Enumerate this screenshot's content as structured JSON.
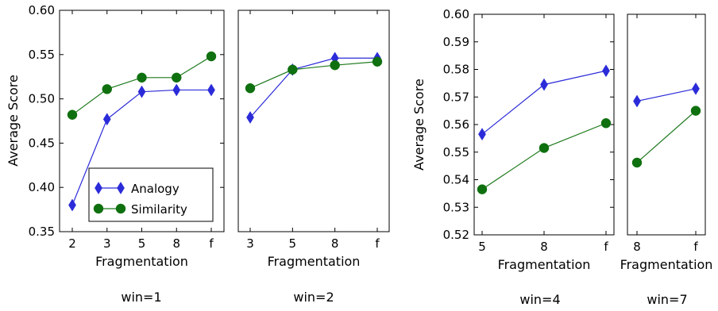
{
  "colors": {
    "analogy": "#2b2bd9",
    "similarity": "#1f7a1f",
    "similarity_marker": "#0f700f"
  },
  "chart_data": [
    {
      "type": "line",
      "caption": "win=1",
      "xlabel": "Fragmentation",
      "ylabel": "Average Score",
      "categories": [
        "2",
        "3",
        "5",
        "8",
        "f"
      ],
      "ylim": [
        0.35,
        0.6
      ],
      "yticks": [
        "0.35",
        "0.40",
        "0.45",
        "0.50",
        "0.55",
        "0.60"
      ],
      "grid": false,
      "legend": "lower-right",
      "series": [
        {
          "name": "Analogy",
          "marker": "diamond",
          "values": [
            0.38,
            0.477,
            0.508,
            0.51,
            0.51
          ]
        },
        {
          "name": "Similarity",
          "marker": "circle",
          "values": [
            0.482,
            0.511,
            0.524,
            0.524,
            0.548
          ]
        }
      ]
    },
    {
      "type": "line",
      "caption": "win=2",
      "xlabel": "Fragmentation",
      "ylabel": "",
      "categories": [
        "3",
        "5",
        "8",
        "f"
      ],
      "ylim": [
        0.35,
        0.6
      ],
      "grid": false,
      "series": [
        {
          "name": "Analogy",
          "marker": "diamond",
          "values": [
            0.479,
            0.533,
            0.546,
            0.546
          ]
        },
        {
          "name": "Similarity",
          "marker": "circle",
          "values": [
            0.512,
            0.533,
            0.538,
            0.542
          ]
        }
      ]
    },
    {
      "type": "line",
      "caption": "win=4",
      "xlabel": "Fragmentation",
      "ylabel": "Average Score",
      "categories": [
        "5",
        "8",
        "f"
      ],
      "ylim": [
        0.52,
        0.6
      ],
      "yticks": [
        "0.52",
        "0.53",
        "0.54",
        "0.55",
        "0.56",
        "0.57",
        "0.58",
        "0.59",
        "0.60"
      ],
      "grid": false,
      "series": [
        {
          "name": "Analogy",
          "marker": "diamond",
          "values": [
            0.5565,
            0.5745,
            0.5795
          ]
        },
        {
          "name": "Similarity",
          "marker": "circle",
          "values": [
            0.5365,
            0.5515,
            0.5605
          ]
        }
      ]
    },
    {
      "type": "line",
      "caption": "win=7",
      "xlabel": "Fragmentation",
      "ylabel": "",
      "categories": [
        "8",
        "f"
      ],
      "ylim": [
        0.52,
        0.6
      ],
      "grid": false,
      "series": [
        {
          "name": "Analogy",
          "marker": "diamond",
          "values": [
            0.5685,
            0.573
          ]
        },
        {
          "name": "Similarity",
          "marker": "circle",
          "values": [
            0.5462,
            0.565
          ]
        }
      ]
    }
  ]
}
